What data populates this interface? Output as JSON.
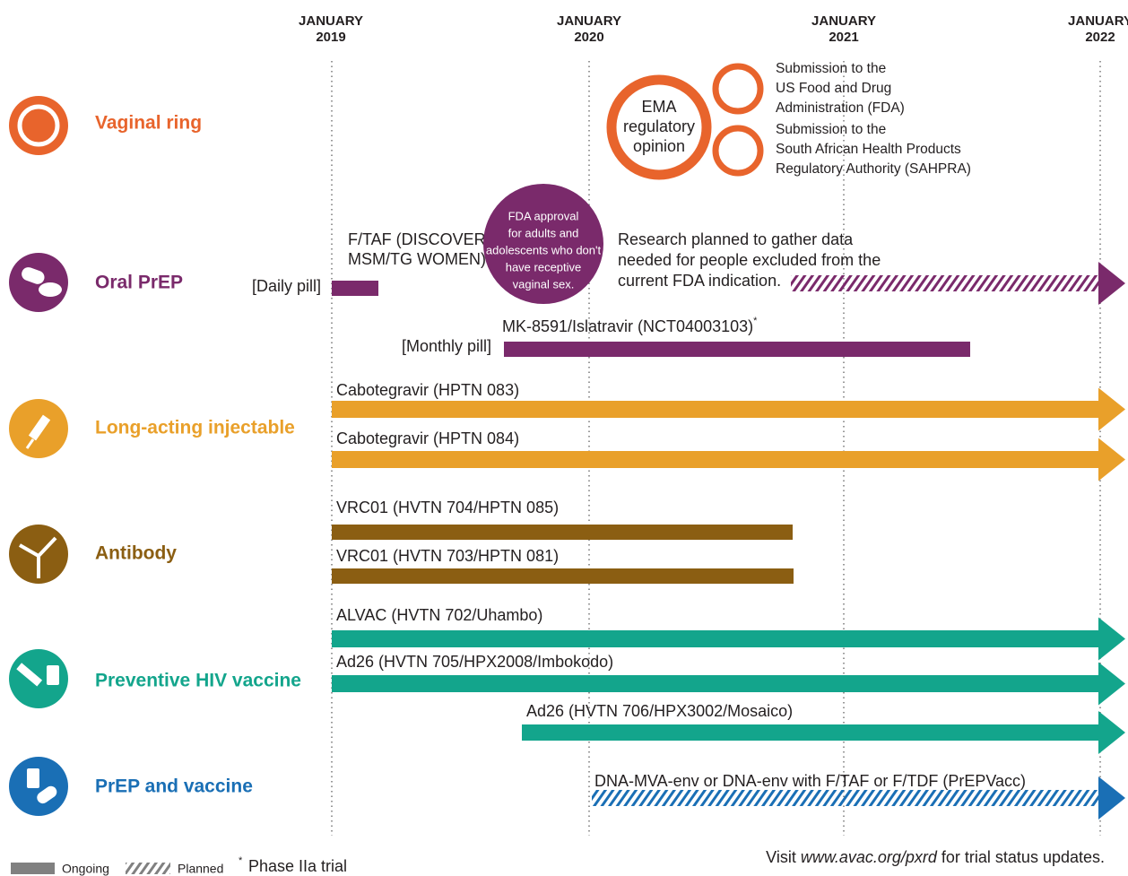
{
  "years": [
    {
      "month": "JANUARY",
      "year": "2019"
    },
    {
      "month": "JANUARY",
      "year": "2020"
    },
    {
      "month": "JANUARY",
      "year": "2021"
    },
    {
      "month": "JANUARY",
      "year": "2022"
    }
  ],
  "categories": [
    {
      "label": "Vaginal ring"
    },
    {
      "label": "Oral PrEP"
    },
    {
      "label": "Long-acting injectable"
    },
    {
      "label": "Antibody"
    },
    {
      "label": "Preventive HIV vaccine"
    },
    {
      "label": "PrEP and vaccine"
    }
  ],
  "vaginal_ring": {
    "ema": [
      "EMA",
      "regulatory",
      "opinion"
    ],
    "fda_submission": [
      "Submission to the",
      "US Food and Drug",
      "Administration (FDA)"
    ],
    "sahpra_submission": [
      "Submission to the",
      "South African Health Products",
      "Regulatory Authority (SAHPRA)"
    ]
  },
  "oral_prep": {
    "daily": {
      "trial": [
        "F/TAF (DISCOVER–",
        "MSM/TG WOMEN)"
      ],
      "dosing": "[Daily pill]"
    },
    "fda_approval": [
      "FDA approval",
      "for adults and",
      "adolescents who don't",
      "have receptive",
      "vaginal sex."
    ],
    "research": [
      "Research planned to gather data",
      "needed for people excluded from the",
      "current FDA indication."
    ],
    "monthly": {
      "trial": "MK-8591/Islatravir (NCT04003103)",
      "note_marker": "*",
      "dosing": "[Monthly pill]"
    }
  },
  "trials": [
    "Cabotegravir (HPTN 083)",
    "Cabotegravir (HPTN 084)",
    "VRC01 (HVTN 704/HPTN 085)",
    "VRC01 (HVTN 703/HPTN 081)",
    "ALVAC (HVTN 702/Uhambo)",
    "Ad26 (HVTN 705/HPX2008/Imbokodo)",
    "Ad26 (HVTN 706/HPX3002/Mosaico)",
    "DNA-MVA-env or DNA-env with F/TAF or F/TDF (PrEPVacc)"
  ],
  "legend": {
    "ongoing": "Ongoing",
    "planned": "Planned",
    "phase_marker": "*",
    "phase": "Phase IIa trial"
  },
  "footer": [
    "Visit ",
    "www.avac.org/pxrd",
    " for trial status updates."
  ]
}
